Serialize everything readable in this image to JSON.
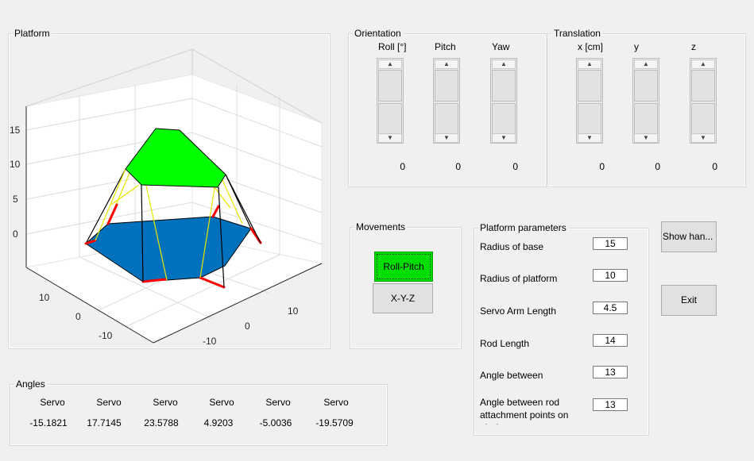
{
  "platform_panel": {
    "title": "Platform"
  },
  "axes": {
    "z_ticks": [
      "15",
      "10",
      "5",
      "0"
    ],
    "x_ticks": [
      "10",
      "0",
      "-10"
    ],
    "y_ticks": [
      "10",
      "0",
      "-10"
    ]
  },
  "colors": {
    "top_platform": "#00ff00",
    "base": "#0072bd",
    "servo_arm": "#ff0000",
    "rod_yellow": "#ffff00",
    "rod_dark": "#000000",
    "roll_pitch_active": "#00dd00"
  },
  "orientation": {
    "title": "Orientation",
    "columns": [
      {
        "label": "Roll [°]",
        "value": "0"
      },
      {
        "label": "Pitch",
        "value": "0"
      },
      {
        "label": "Yaw",
        "value": "0"
      }
    ]
  },
  "translation": {
    "title": "Translation",
    "columns": [
      {
        "label": "x [cm]",
        "value": "0"
      },
      {
        "label": "y",
        "value": "0"
      },
      {
        "label": "z",
        "value": "0"
      }
    ]
  },
  "movements": {
    "title": "Movements",
    "roll_pitch_label": "Roll-Pitch",
    "xyz_label": "X-Y-Z"
  },
  "platform_params": {
    "title": "Platform parameters",
    "rows": [
      {
        "label": "Radius of base",
        "value": "15"
      },
      {
        "label": "Radius of platform",
        "value": "10"
      },
      {
        "label": "Servo Arm Length",
        "value": "4.5"
      },
      {
        "label": "Rod Length",
        "value": "14"
      },
      {
        "label": "Angle between",
        "value": "13"
      },
      {
        "label": "Angle between rod attachment points on platform",
        "value": "13"
      }
    ]
  },
  "buttons": {
    "show_hand": "Show han...",
    "exit": "Exit"
  },
  "angles": {
    "title": "Angles",
    "headers": [
      "Servo",
      "Servo",
      "Servo",
      "Servo",
      "Servo",
      "Servo"
    ],
    "values": [
      "-15.1821",
      "17.7145",
      "23.5788",
      "4.9203",
      "-5.0036",
      "-19.5709"
    ]
  }
}
